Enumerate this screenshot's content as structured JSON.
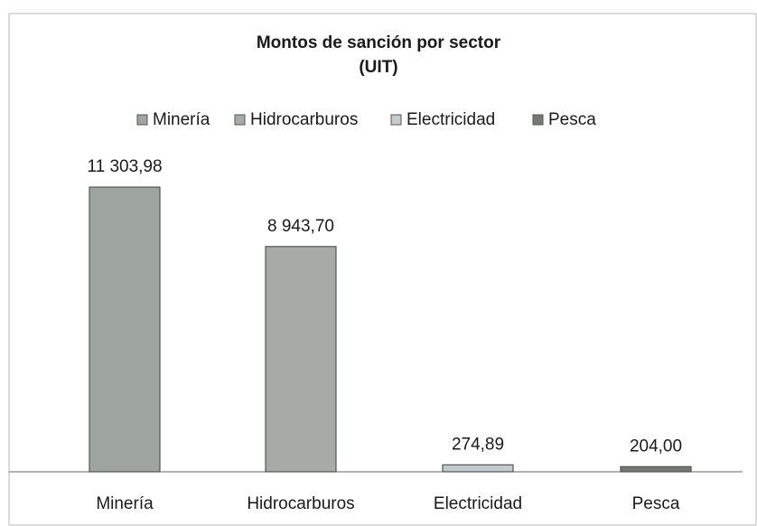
{
  "chart_data": {
    "type": "bar",
    "title": "Montos de sanción por sector",
    "subtitle": "(UIT)",
    "categories": [
      "Minería",
      "Hidrocarburos",
      "Electricidad",
      "Pesca"
    ],
    "values": [
      11303.98,
      8943.7,
      274.89,
      204.0
    ],
    "value_labels": [
      "11 303,98",
      "8 943,70",
      "274,89",
      "204,00"
    ],
    "colors": [
      "#9ea59e",
      "#a7aba7",
      "#c3cccc",
      "#727a72"
    ],
    "legend": "top"
  }
}
